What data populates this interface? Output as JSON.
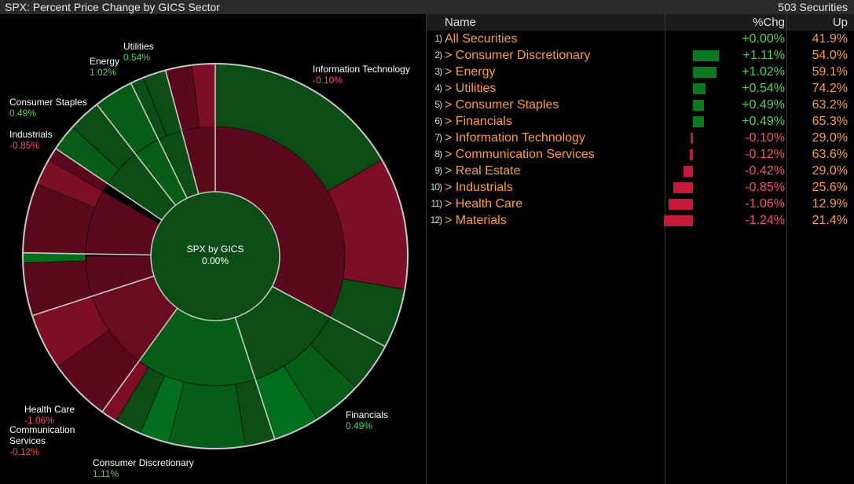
{
  "window": {
    "title": "SPX: Percent Price Change by GICS Sector",
    "count": "503 Securities"
  },
  "center": {
    "label": "SPX by GICS",
    "value": "0.00%"
  },
  "colors": {
    "pos_fill": "#0b4d14",
    "pos_bright": "#006e1c",
    "neg_fill": "#5b0a1c",
    "neg_bright": "#7a0d22",
    "pos_text": "#4fd64f",
    "neg_text": "#ff4d5a",
    "orange": "#ff9e2c"
  },
  "sector_labels": [
    {
      "name": "Information Technology",
      "value": "-0.10%",
      "sign": "neg"
    },
    {
      "name": "Financials",
      "value": "0.49%",
      "sign": "pos"
    },
    {
      "name": "Consumer Discretionary",
      "value": "1.11%",
      "sign": "pos"
    },
    {
      "name": "Health Care",
      "value": "-1.06%",
      "sign": "neg"
    },
    {
      "name": "Communication",
      "name2": "Services",
      "value": "-0.12%",
      "sign": "neg"
    },
    {
      "name": "Industrials",
      "value": "-0.85%",
      "sign": "neg"
    },
    {
      "name": "Consumer Staples",
      "value": "0.49%",
      "sign": "pos"
    },
    {
      "name": "Energy",
      "value": "1.02%",
      "sign": "pos"
    },
    {
      "name": "Utilities",
      "value": "0.54%",
      "sign": "pos"
    }
  ],
  "table": {
    "headers": {
      "name": "Name",
      "chg": "%Chg",
      "up": "Up"
    },
    "rows": [
      {
        "num": "1)",
        "name": "All Securities",
        "chg": "+0.00%",
        "up": "41.9%",
        "v": 0.0
      },
      {
        "num": "2)",
        "name": "> Consumer Discretionary",
        "chg": "+1.11%",
        "up": "54.0%",
        "v": 1.11
      },
      {
        "num": "3)",
        "name": "> Energy",
        "chg": "+1.02%",
        "up": "59.1%",
        "v": 1.02
      },
      {
        "num": "4)",
        "name": "> Utilities",
        "chg": "+0.54%",
        "up": "74.2%",
        "v": 0.54
      },
      {
        "num": "5)",
        "name": "> Consumer Staples",
        "chg": "+0.49%",
        "up": "63.2%",
        "v": 0.49
      },
      {
        "num": "6)",
        "name": "> Financials",
        "chg": "+0.49%",
        "up": "65.3%",
        "v": 0.49
      },
      {
        "num": "7)",
        "name": "> Information Technology",
        "chg": "-0.10%",
        "up": "29.0%",
        "v": -0.1
      },
      {
        "num": "8)",
        "name": "> Communication Services",
        "chg": "-0.12%",
        "up": "63.6%",
        "v": -0.12
      },
      {
        "num": "9)",
        "name": "> Real Estate",
        "chg": "-0.42%",
        "up": "29.0%",
        "v": -0.42
      },
      {
        "num": "10)",
        "name": "> Industrials",
        "chg": "-0.85%",
        "up": "25.6%",
        "v": -0.85
      },
      {
        "num": "11)",
        "name": "> Health Care",
        "chg": "-1.06%",
        "up": "12.9%",
        "v": -1.06
      },
      {
        "num": "12)",
        "name": "> Materials",
        "chg": "-1.24%",
        "up": "21.4%",
        "v": -1.24
      }
    ]
  }
}
